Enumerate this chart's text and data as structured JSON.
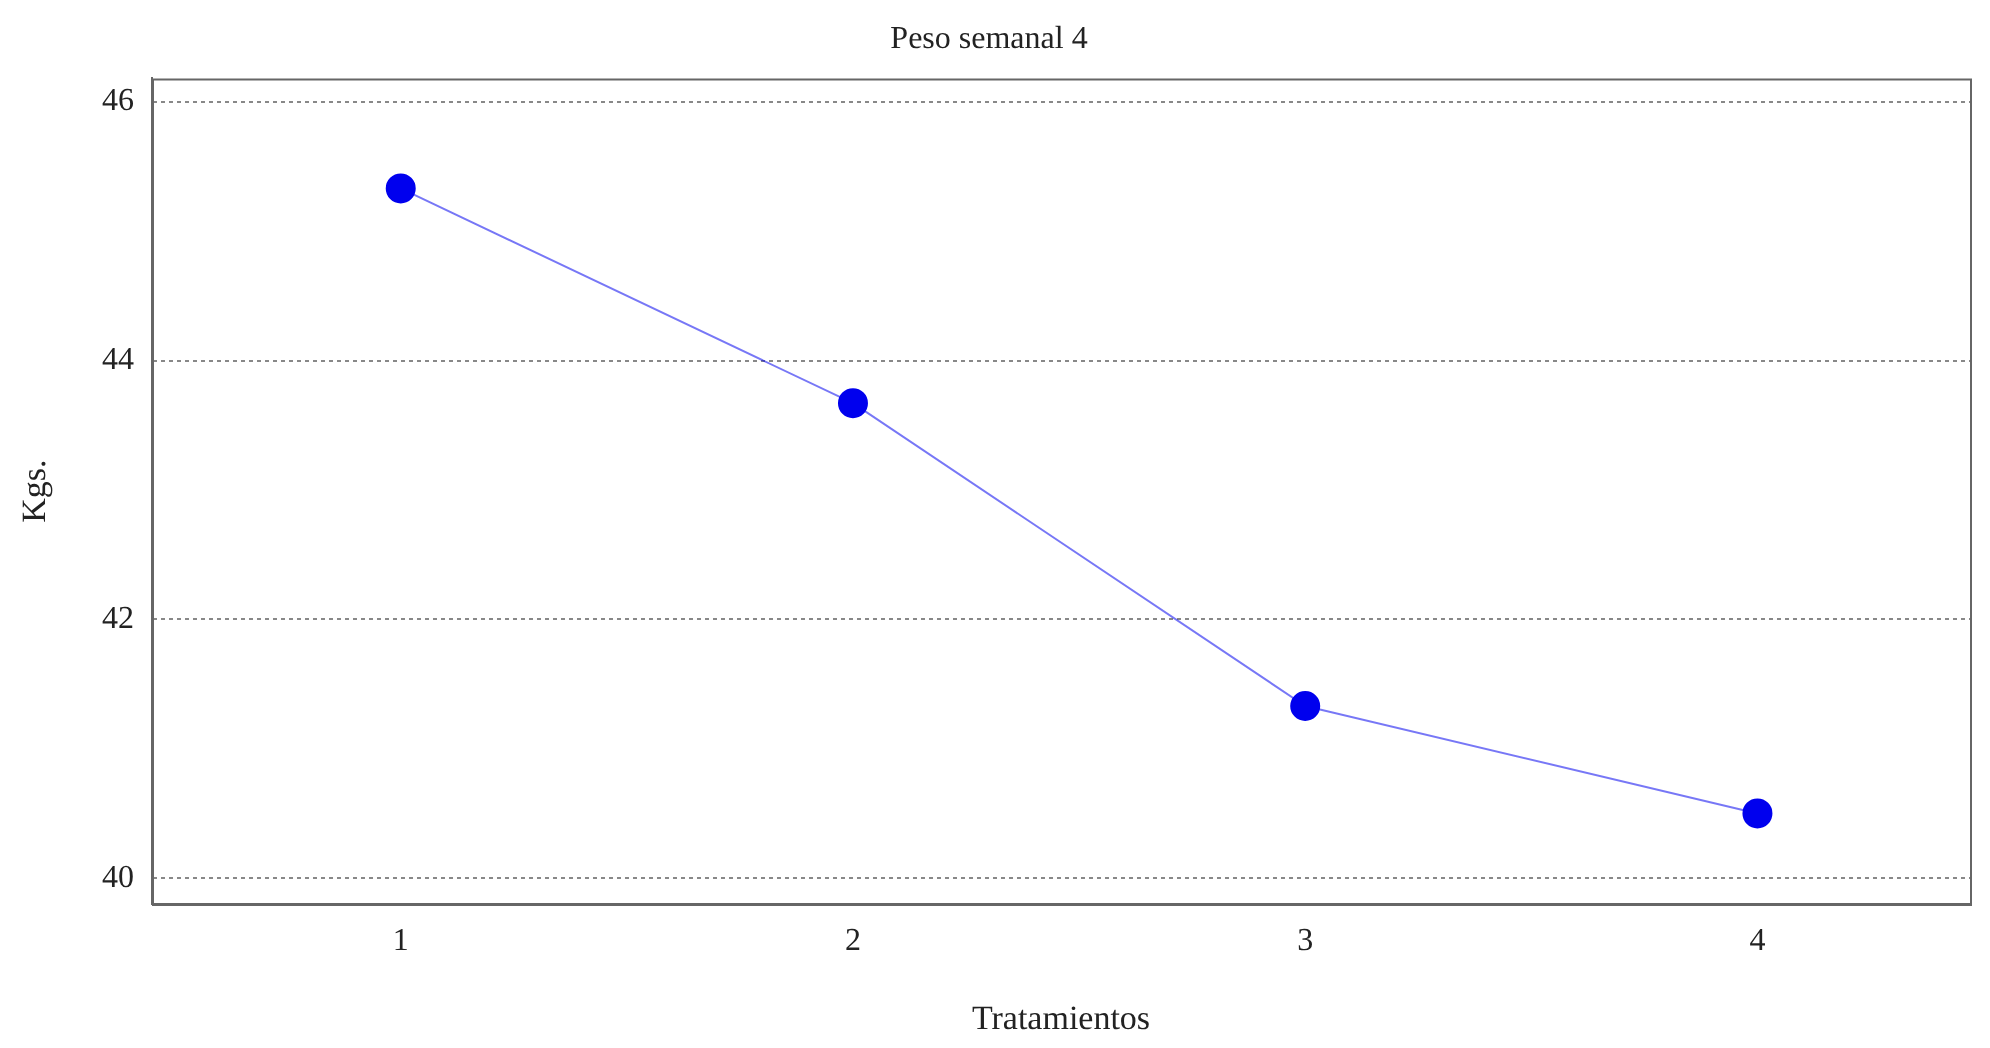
{
  "chart_data": {
    "type": "line",
    "title": "Peso semanal 4",
    "xlabel": "Tratamientos",
    "ylabel": "Kgs.",
    "x": [
      1,
      2,
      3,
      4
    ],
    "series": [
      {
        "color": "#0000ee",
        "values": [
          45.33,
          43.67,
          41.33,
          40.5
        ]
      }
    ],
    "xlim": [
      0.45,
      4.47
    ],
    "xticks": [
      1,
      2,
      3,
      4
    ],
    "ylim": [
      39.8,
      46.18
    ],
    "yticks": [
      40,
      42,
      44,
      46
    ],
    "grid": "y",
    "marker": "circle",
    "line_style": "solid",
    "legend": false
  }
}
